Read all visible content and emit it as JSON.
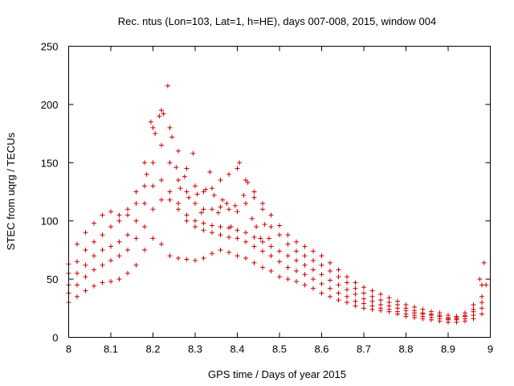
{
  "chart_data": {
    "type": "scatter",
    "title": "Rec. ntus (Lon=103, Lat=1, h=HE), days 007-008, 2015, window 004",
    "xlabel": "GPS time / Days of year 2015",
    "ylabel": "STEC from uqrg / TECUs",
    "xlim": [
      8,
      9
    ],
    "ylim": [
      0,
      250
    ],
    "xticks": [
      "8",
      "8.1",
      "8.2",
      "8.3",
      "8.4",
      "8.5",
      "8.6",
      "8.7",
      "8.8",
      "8.9",
      "9"
    ],
    "yticks": [
      "0",
      "50",
      "100",
      "150",
      "200",
      "250"
    ],
    "grid": false,
    "marker": "+",
    "color": "#cc0000",
    "series": [
      {
        "x": [
          8.0,
          8.02,
          8.04,
          8.06,
          8.08,
          8.1,
          8.12,
          8.14,
          8.16,
          8.18,
          8.2,
          8.22,
          8.24,
          8.26,
          8.28,
          8.3,
          8.32,
          8.34,
          8.36,
          8.38,
          8.4,
          8.42,
          8.44,
          8.46,
          8.48,
          8.5,
          8.52,
          8.54,
          8.56,
          8.58,
          8.6,
          8.62,
          8.64,
          8.66,
          8.68,
          8.7,
          8.72,
          8.74,
          8.76,
          8.78,
          8.8,
          8.82,
          8.84,
          8.86,
          8.88,
          8.9,
          8.92,
          8.94,
          8.96,
          8.98
        ],
        "y": [
          30,
          35,
          40,
          44,
          47,
          48,
          50,
          55,
          62,
          75,
          85,
          80,
          70,
          68,
          67,
          66,
          68,
          72,
          75,
          73,
          70,
          68,
          64,
          60,
          57,
          52,
          50,
          48,
          45,
          42,
          38,
          35,
          32,
          30,
          27,
          25,
          24,
          23,
          22,
          20,
          18,
          17,
          16,
          15,
          14,
          13,
          13,
          14,
          16,
          20
        ]
      },
      {
        "x": [
          8.0,
          8.02,
          8.04,
          8.06,
          8.08,
          8.1,
          8.12,
          8.14,
          8.16,
          8.18,
          8.2,
          8.22,
          8.24,
          8.26,
          8.28,
          8.3,
          8.32,
          8.34,
          8.36,
          8.38,
          8.4,
          8.42,
          8.44,
          8.46,
          8.48,
          8.5,
          8.52,
          8.54,
          8.56,
          8.58,
          8.6,
          8.62,
          8.64,
          8.66,
          8.68,
          8.7,
          8.72,
          8.74,
          8.76,
          8.78,
          8.8,
          8.82,
          8.84,
          8.86,
          8.88,
          8.9,
          8.92,
          8.94,
          8.96,
          8.98
        ],
        "y": [
          38,
          45,
          52,
          58,
          62,
          66,
          70,
          75,
          85,
          95,
          110,
          118,
          118,
          110,
          100,
          95,
          92,
          90,
          88,
          86,
          85,
          82,
          78,
          74,
          70,
          65,
          60,
          57,
          54,
          50,
          46,
          42,
          38,
          35,
          31,
          29,
          27,
          25,
          24,
          22,
          20,
          19,
          18,
          17,
          16,
          15,
          15,
          16,
          19,
          25
        ]
      },
      {
        "x": [
          8.0,
          8.02,
          8.04,
          8.06,
          8.08,
          8.1,
          8.12,
          8.14,
          8.16,
          8.18,
          8.2,
          8.22,
          8.24,
          8.26,
          8.28,
          8.3,
          8.32,
          8.34,
          8.36,
          8.38,
          8.4,
          8.42,
          8.44,
          8.46,
          8.48,
          8.5,
          8.52,
          8.54,
          8.56,
          8.58,
          8.6,
          8.62,
          8.64,
          8.66,
          8.68,
          8.7,
          8.72,
          8.74,
          8.76,
          8.78,
          8.8,
          8.82,
          8.84,
          8.86,
          8.88,
          8.9,
          8.92,
          8.94,
          8.96,
          8.98
        ],
        "y": [
          45,
          55,
          62,
          70,
          75,
          78,
          82,
          88,
          100,
          115,
          130,
          135,
          125,
          115,
          105,
          100,
          98,
          96,
          95,
          94,
          92,
          90,
          86,
          82,
          78,
          74,
          70,
          66,
          62,
          58,
          54,
          49,
          45,
          41,
          37,
          33,
          31,
          28,
          27,
          25,
          23,
          21,
          20,
          19,
          18,
          16,
          16,
          18,
          22,
          30
        ]
      },
      {
        "x": [
          8.0,
          8.02,
          8.04,
          8.06,
          8.08,
          8.1,
          8.12,
          8.14,
          8.16,
          8.18,
          8.2,
          8.22,
          8.24,
          8.26,
          8.28,
          8.3,
          8.32,
          8.34,
          8.36,
          8.38,
          8.4,
          8.42,
          8.44,
          8.46,
          8.48,
          8.5,
          8.52,
          8.54,
          8.56,
          8.58,
          8.6,
          8.62,
          8.64,
          8.66,
          8.68,
          8.7,
          8.72,
          8.74,
          8.76,
          8.78,
          8.8,
          8.82,
          8.84,
          8.86,
          8.88,
          8.9,
          8.92,
          8.94,
          8.96,
          8.98
        ],
        "y": [
          55,
          65,
          75,
          82,
          88,
          95,
          100,
          105,
          115,
          130,
          150,
          165,
          150,
          135,
          125,
          115,
          110,
          110,
          112,
          110,
          108,
          115,
          120,
          110,
          95,
          88,
          80,
          74,
          70,
          66,
          62,
          57,
          52,
          47,
          42,
          38,
          35,
          32,
          30,
          28,
          25,
          23,
          21,
          20,
          19,
          17,
          17,
          19,
          24,
          35
        ]
      },
      {
        "x": [
          8.0,
          8.02,
          8.04,
          8.06,
          8.08,
          8.1,
          8.12,
          8.14,
          8.16,
          8.18,
          8.2,
          8.22,
          8.24,
          8.26,
          8.28,
          8.3,
          8.32,
          8.34,
          8.36,
          8.38,
          8.4,
          8.42,
          8.44,
          8.46,
          8.48,
          8.5,
          8.52,
          8.54,
          8.56,
          8.58,
          8.6,
          8.62,
          8.64,
          8.66,
          8.68,
          8.7,
          8.72,
          8.74,
          8.76,
          8.78,
          8.8,
          8.82,
          8.84,
          8.86,
          8.88,
          8.9,
          8.92,
          8.94,
          8.96,
          8.98
        ],
        "y": [
          63,
          80,
          90,
          98,
          105,
          108,
          105,
          110,
          125,
          150,
          180,
          195,
          180,
          160,
          145,
          130,
          125,
          128,
          135,
          140,
          145,
          135,
          125,
          115,
          105,
          96,
          88,
          82,
          78,
          74,
          70,
          64,
          58,
          52,
          47,
          43,
          40,
          37,
          34,
          31,
          28,
          26,
          24,
          22,
          21,
          19,
          18,
          21,
          28,
          45
        ]
      },
      {
        "x": [
          8.185,
          8.195,
          8.205,
          8.215,
          8.225,
          8.235,
          8.245,
          8.255,
          8.265,
          8.275,
          8.285,
          8.295,
          8.305,
          8.315,
          8.325,
          8.335,
          8.345,
          8.355,
          8.365,
          8.375,
          8.385,
          8.395,
          8.405,
          8.415,
          8.425,
          8.435,
          8.445,
          8.455,
          8.465,
          8.475
        ],
        "y": [
          140,
          185,
          175,
          190,
          192,
          216,
          172,
          146,
          128,
          138,
          120,
          158,
          123,
          107,
          127,
          142,
          122,
          107,
          118,
          115,
          95,
          113,
          150,
          122,
          133,
          102,
          95,
          85,
          97,
          85
        ]
      },
      {
        "x": [
          8.975,
          8.985,
          8.99
        ],
        "y": [
          50,
          64,
          45
        ]
      }
    ]
  }
}
